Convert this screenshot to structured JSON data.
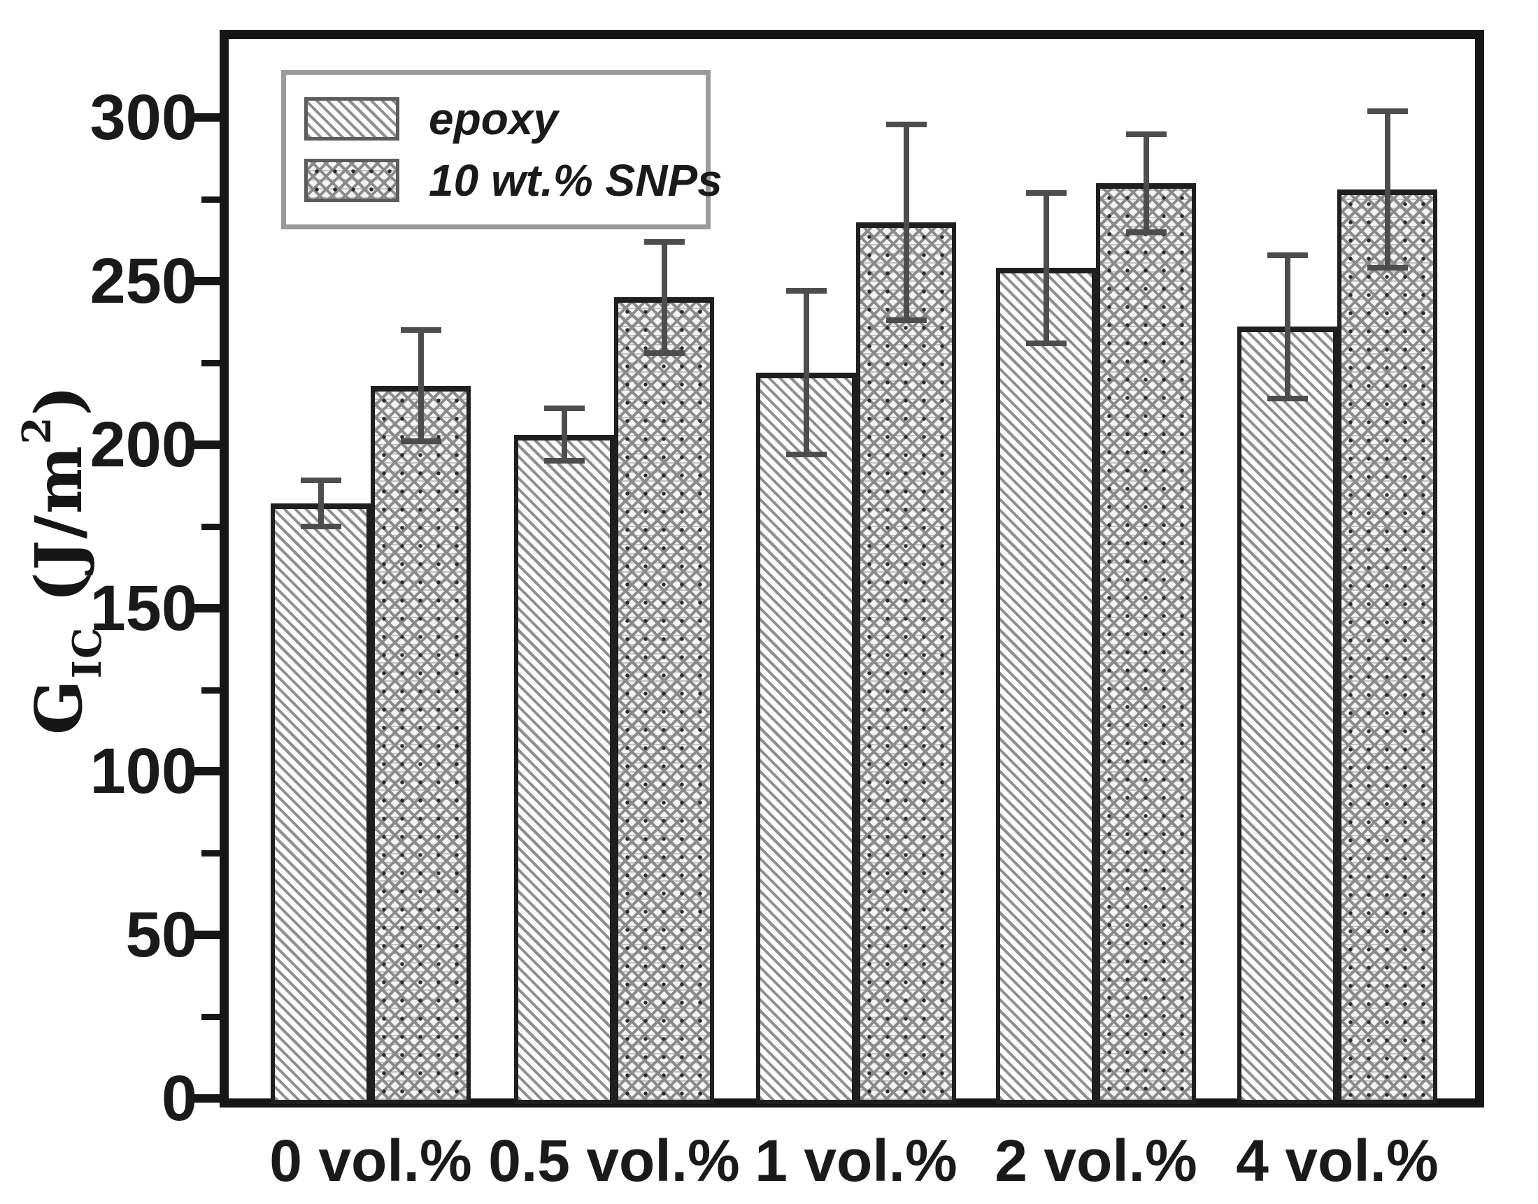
{
  "ylabel_parts": {
    "base": "G",
    "subscript": "IC",
    "unit_open": " (J/m",
    "superscript": "2",
    "unit_close": ")"
  },
  "chart_data": {
    "type": "bar",
    "title": "",
    "xlabel": "",
    "ylabel": "G_IC (J/m2)",
    "categories": [
      "0 vol.%",
      "0.5 vol.%",
      "1 vol.%",
      "2 vol.%",
      "4 vol.%"
    ],
    "series": [
      {
        "name": "epoxy",
        "pattern": "diagonal-hatch",
        "values": [
          182,
          203,
          222,
          254,
          236
        ],
        "errors": [
          7,
          8,
          25,
          23,
          22
        ]
      },
      {
        "name": "10 wt.% SNPs",
        "pattern": "cross-hatch",
        "values": [
          218,
          245,
          268,
          280,
          278
        ],
        "errors": [
          17,
          17,
          30,
          15,
          24
        ]
      }
    ],
    "ylim": [
      0,
      324
    ],
    "yticks": {
      "major": [
        0,
        50,
        100,
        150,
        200,
        250,
        300
      ],
      "minor": [
        25,
        75,
        125,
        175,
        225,
        275
      ]
    },
    "grid": false,
    "legend_position": "top-left",
    "colors": {
      "background": "#ffffff",
      "axis": "#161616",
      "tick_text": "#1a1a1a",
      "bar_border": "#1f1f1f",
      "hatch": "#8f8f8f",
      "error_bar": "#4d4d4d",
      "legend_border": "#9b9b9b"
    }
  }
}
